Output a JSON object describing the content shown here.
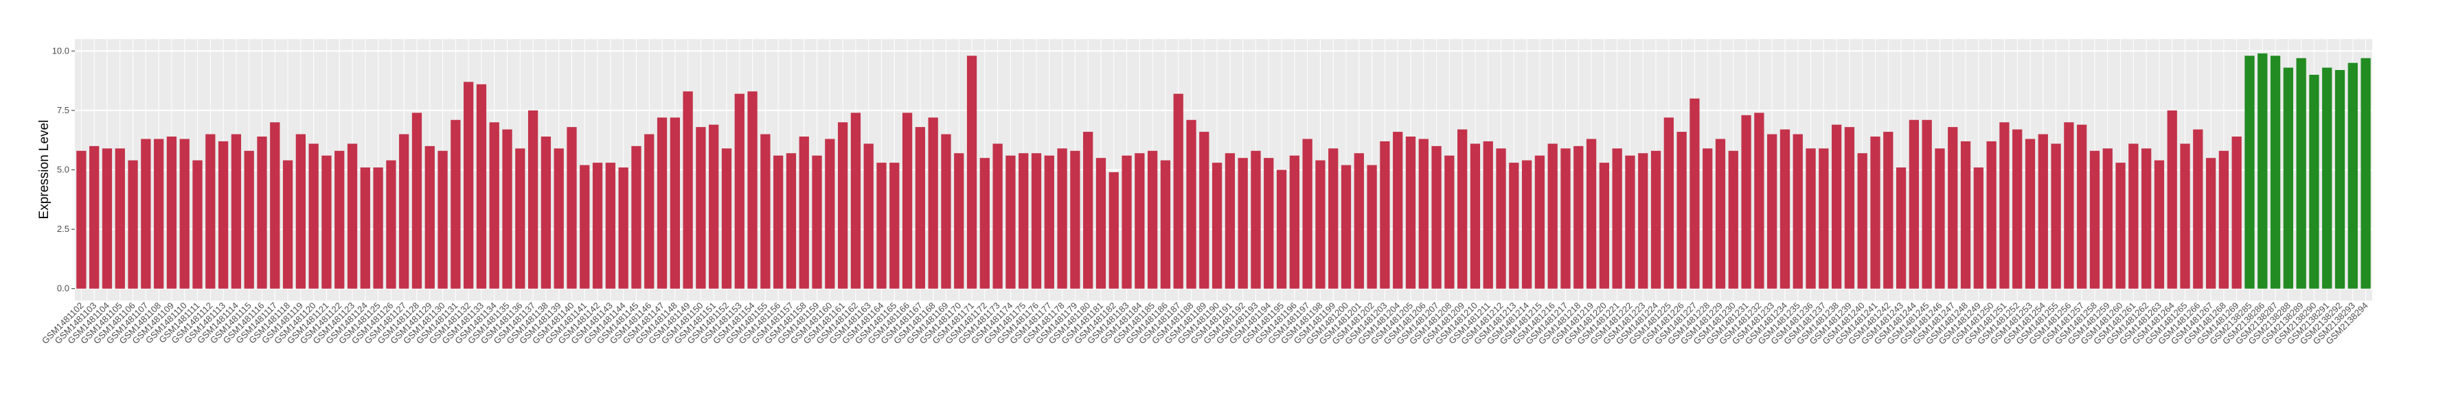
{
  "chart_data": {
    "type": "bar",
    "y_label": "Expression Level",
    "categories": [
      "GSM1481102",
      "GSM1481103",
      "GSM1481104",
      "GSM1481105",
      "GSM1481106",
      "GSM1481107",
      "GSM1481108",
      "GSM1481109",
      "GSM1481110",
      "GSM1481111",
      "GSM1481112",
      "GSM1481113",
      "GSM1481114",
      "GSM1481115",
      "GSM1481116",
      "GSM1481117",
      "GSM1481118",
      "GSM1481119",
      "GSM1481120",
      "GSM1481121",
      "GSM1481122",
      "GSM1481123",
      "GSM1481124",
      "GSM1481125",
      "GSM1481126",
      "GSM1481127",
      "GSM1481128",
      "GSM1481129",
      "GSM1481130",
      "GSM1481131",
      "GSM1481132",
      "GSM1481133",
      "GSM1481134",
      "GSM1481135",
      "GSM1481136",
      "GSM1481137",
      "GSM1481138",
      "GSM1481139",
      "GSM1481140",
      "GSM1481141",
      "GSM1481142",
      "GSM1481143",
      "GSM1481144",
      "GSM1481145",
      "GSM1481146",
      "GSM1481147",
      "GSM1481148",
      "GSM1481149",
      "GSM1481150",
      "GSM1481151",
      "GSM1481152",
      "GSM1481153",
      "GSM1481154",
      "GSM1481155",
      "GSM1481156",
      "GSM1481157",
      "GSM1481158",
      "GSM1481159",
      "GSM1481160",
      "GSM1481161",
      "GSM1481162",
      "GSM1481163",
      "GSM1481164",
      "GSM1481165",
      "GSM1481166",
      "GSM1481167",
      "GSM1481168",
      "GSM1481169",
      "GSM1481170",
      "GSM1481171",
      "GSM1481172",
      "GSM1481173",
      "GSM1481174",
      "GSM1481175",
      "GSM1481176",
      "GSM1481177",
      "GSM1481178",
      "GSM1481179",
      "GSM1481180",
      "GSM1481181",
      "GSM1481182",
      "GSM1481183",
      "GSM1481184",
      "GSM1481185",
      "GSM1481186",
      "GSM1481187",
      "GSM1481188",
      "GSM1481189",
      "GSM1481190",
      "GSM1481191",
      "GSM1481192",
      "GSM1481193",
      "GSM1481194",
      "GSM1481195",
      "GSM1481196",
      "GSM1481197",
      "GSM1481198",
      "GSM1481199",
      "GSM1481200",
      "GSM1481201",
      "GSM1481202",
      "GSM1481203",
      "GSM1481204",
      "GSM1481205",
      "GSM1481206",
      "GSM1481207",
      "GSM1481208",
      "GSM1481209",
      "GSM1481210",
      "GSM1481211",
      "GSM1481212",
      "GSM1481213",
      "GSM1481214",
      "GSM1481215",
      "GSM1481216",
      "GSM1481217",
      "GSM1481218",
      "GSM1481219",
      "GSM1481220",
      "GSM1481221",
      "GSM1481222",
      "GSM1481223",
      "GSM1481224",
      "GSM1481225",
      "GSM1481226",
      "GSM1481227",
      "GSM1481228",
      "GSM1481229",
      "GSM1481230",
      "GSM1481231",
      "GSM1481232",
      "GSM1481233",
      "GSM1481234",
      "GSM1481235",
      "GSM1481236",
      "GSM1481237",
      "GSM1481238",
      "GSM1481239",
      "GSM1481240",
      "GSM1481241",
      "GSM1481242",
      "GSM1481243",
      "GSM1481244",
      "GSM1481245",
      "GSM1481246",
      "GSM1481247",
      "GSM1481248",
      "GSM1481249",
      "GSM1481250",
      "GSM1481251",
      "GSM1481252",
      "GSM1481253",
      "GSM1481254",
      "GSM1481255",
      "GSM1481256",
      "GSM1481257",
      "GSM1481258",
      "GSM1481259",
      "GSM1481260",
      "GSM1481261",
      "GSM1481262",
      "GSM1481263",
      "GSM1481264",
      "GSM1481265",
      "GSM1481266",
      "GSM1481267",
      "GSM1481268",
      "GSM1481269",
      "GSM2138285",
      "GSM2138286",
      "GSM2138287",
      "GSM2138288",
      "GSM2138289",
      "GSM2138290",
      "GSM2138291",
      "GSM2138292",
      "GSM2138293",
      "GSM2138294"
    ],
    "values": [
      5.8,
      6.0,
      5.9,
      5.9,
      5.4,
      6.3,
      6.3,
      6.4,
      6.3,
      5.4,
      6.5,
      6.2,
      6.5,
      5.8,
      6.4,
      7.0,
      5.4,
      6.5,
      6.1,
      5.6,
      5.8,
      6.1,
      5.1,
      5.1,
      5.4,
      6.5,
      7.4,
      6.0,
      5.8,
      7.1,
      8.7,
      8.6,
      7.0,
      6.7,
      5.9,
      7.5,
      6.4,
      5.9,
      6.8,
      5.2,
      5.3,
      5.3,
      5.1,
      6.0,
      6.5,
      7.2,
      7.2,
      8.3,
      6.8,
      6.9,
      5.9,
      8.2,
      8.3,
      6.5,
      5.6,
      5.7,
      6.4,
      5.6,
      6.3,
      7.0,
      7.4,
      6.1,
      5.3,
      5.3,
      7.4,
      6.8,
      7.2,
      6.5,
      5.7,
      9.8,
      5.5,
      6.1,
      5.6,
      5.7,
      5.7,
      5.6,
      5.9,
      5.8,
      6.6,
      5.5,
      4.9,
      5.6,
      5.7,
      5.8,
      5.4,
      8.2,
      7.1,
      6.6,
      5.3,
      5.7,
      5.5,
      5.8,
      5.5,
      5.0,
      5.6,
      6.3,
      5.4,
      5.9,
      5.2,
      5.7,
      5.2,
      6.2,
      6.6,
      6.4,
      6.3,
      6.0,
      5.6,
      6.7,
      6.1,
      6.2,
      5.9,
      5.3,
      5.4,
      5.6,
      6.1,
      5.9,
      6.0,
      6.3,
      5.3,
      5.9,
      5.6,
      5.7,
      5.8,
      7.2,
      6.6,
      8.0,
      5.9,
      6.3,
      5.8,
      7.3,
      7.4,
      6.5,
      6.7,
      6.5,
      5.9,
      5.9,
      6.9,
      6.8,
      5.7,
      6.4,
      6.6,
      5.1,
      7.1,
      7.1,
      5.9,
      6.8,
      6.2,
      5.1,
      6.2,
      7.0,
      6.7,
      6.3,
      6.5,
      6.1,
      7.0,
      6.9,
      5.8,
      5.9,
      5.3,
      6.1,
      5.9,
      5.4,
      7.5,
      6.1,
      6.7,
      5.5,
      5.8,
      6.4,
      9.8,
      9.9,
      9.8,
      9.3,
      9.7,
      9.0,
      9.3,
      9.2,
      9.5,
      9.7
    ],
    "colors": [
      "#c3324a",
      "#c3324a",
      "#c3324a",
      "#c3324a",
      "#c3324a",
      "#c3324a",
      "#c3324a",
      "#c3324a",
      "#c3324a",
      "#c3324a",
      "#c3324a",
      "#c3324a",
      "#c3324a",
      "#c3324a",
      "#c3324a",
      "#c3324a",
      "#c3324a",
      "#c3324a",
      "#c3324a",
      "#c3324a",
      "#c3324a",
      "#c3324a",
      "#c3324a",
      "#c3324a",
      "#c3324a",
      "#c3324a",
      "#c3324a",
      "#c3324a",
      "#c3324a",
      "#c3324a",
      "#c3324a",
      "#c3324a",
      "#c3324a",
      "#c3324a",
      "#c3324a",
      "#c3324a",
      "#c3324a",
      "#c3324a",
      "#c3324a",
      "#c3324a",
      "#c3324a",
      "#c3324a",
      "#c3324a",
      "#c3324a",
      "#c3324a",
      "#c3324a",
      "#c3324a",
      "#c3324a",
      "#c3324a",
      "#c3324a",
      "#c3324a",
      "#c3324a",
      "#c3324a",
      "#c3324a",
      "#c3324a",
      "#c3324a",
      "#c3324a",
      "#c3324a",
      "#c3324a",
      "#c3324a",
      "#c3324a",
      "#c3324a",
      "#c3324a",
      "#c3324a",
      "#c3324a",
      "#c3324a",
      "#c3324a",
      "#c3324a",
      "#c3324a",
      "#c3324a",
      "#c3324a",
      "#c3324a",
      "#c3324a",
      "#c3324a",
      "#c3324a",
      "#c3324a",
      "#c3324a",
      "#c3324a",
      "#c3324a",
      "#c3324a",
      "#c3324a",
      "#c3324a",
      "#c3324a",
      "#c3324a",
      "#c3324a",
      "#c3324a",
      "#c3324a",
      "#c3324a",
      "#c3324a",
      "#c3324a",
      "#c3324a",
      "#c3324a",
      "#c3324a",
      "#c3324a",
      "#c3324a",
      "#c3324a",
      "#c3324a",
      "#c3324a",
      "#c3324a",
      "#c3324a",
      "#c3324a",
      "#c3324a",
      "#c3324a",
      "#c3324a",
      "#c3324a",
      "#c3324a",
      "#c3324a",
      "#c3324a",
      "#c3324a",
      "#c3324a",
      "#c3324a",
      "#c3324a",
      "#c3324a",
      "#c3324a",
      "#c3324a",
      "#c3324a",
      "#c3324a",
      "#c3324a",
      "#c3324a",
      "#c3324a",
      "#c3324a",
      "#c3324a",
      "#c3324a",
      "#c3324a",
      "#c3324a",
      "#c3324a",
      "#c3324a",
      "#c3324a",
      "#c3324a",
      "#c3324a",
      "#c3324a",
      "#c3324a",
      "#c3324a",
      "#c3324a",
      "#c3324a",
      "#c3324a",
      "#c3324a",
      "#c3324a",
      "#c3324a",
      "#c3324a",
      "#c3324a",
      "#c3324a",
      "#c3324a",
      "#c3324a",
      "#c3324a",
      "#c3324a",
      "#c3324a",
      "#c3324a",
      "#c3324a",
      "#c3324a",
      "#c3324a",
      "#c3324a",
      "#c3324a",
      "#c3324a",
      "#c3324a",
      "#c3324a",
      "#c3324a",
      "#c3324a",
      "#c3324a",
      "#c3324a",
      "#c3324a",
      "#c3324a",
      "#c3324a",
      "#c3324a",
      "#c3324a",
      "#c3324a",
      "#c3324a",
      "#c3324a",
      "#228b22",
      "#228b22",
      "#228b22",
      "#228b22",
      "#228b22",
      "#228b22",
      "#228b22",
      "#228b22",
      "#228b22",
      "#228b22"
    ],
    "ylim": [
      -0.5,
      10.5
    ],
    "yticks": [
      {
        "value": 0,
        "label": "0.0"
      },
      2.5,
      {
        "value": 5,
        "label": "5.0"
      },
      7.5,
      {
        "value": 10,
        "label": "10.0"
      }
    ],
    "grid": true
  }
}
